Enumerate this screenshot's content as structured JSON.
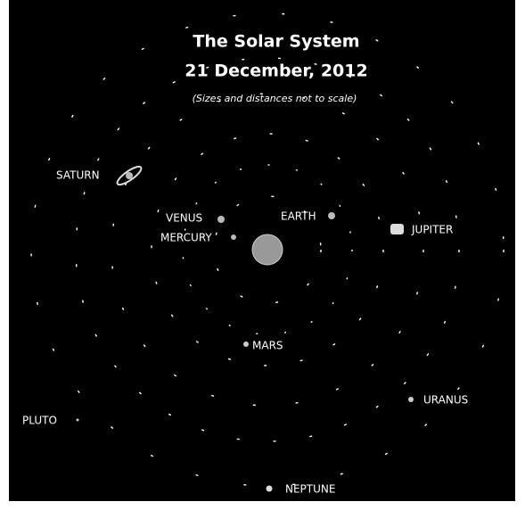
{
  "header": {
    "title": "The Solar System",
    "date": "21 December, 2012",
    "subtitle": "(Sizes and distances not to scale)"
  },
  "planets": [
    {
      "label": "SATURN"
    },
    {
      "label": "VENUS"
    },
    {
      "label": "MERCURY"
    },
    {
      "label": "EARTH"
    },
    {
      "label": "JUPITER"
    },
    {
      "label": "MARS"
    },
    {
      "label": "URANUS"
    },
    {
      "label": "PLUTO"
    },
    {
      "label": "NEPTUNE"
    }
  ]
}
